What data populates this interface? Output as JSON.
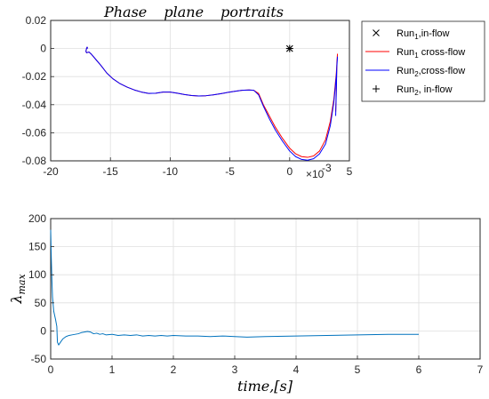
{
  "chart_data": [
    {
      "type": "line",
      "title": "Phase plane portraits",
      "xlim": [
        -20,
        5
      ],
      "ylim": [
        -0.08,
        0.02
      ],
      "x_ticks": [
        "-20",
        "-15",
        "-10",
        "-5",
        "0",
        "5"
      ],
      "y_ticks": [
        "0.02",
        "0",
        "-0.02",
        "-0.04",
        "-0.06",
        "-0.08"
      ],
      "x_exponent": {
        "base": "×10",
        "power": "-3"
      },
      "grid": true,
      "legend_position": "outside-right",
      "legend": [
        {
          "marker": "x",
          "name": "Run",
          "sub": "1",
          "suffix": ",in-flow",
          "color": "#000000"
        },
        {
          "line": true,
          "name": "Run",
          "sub": "1",
          "suffix": " cross-flow",
          "color": "#ff0000"
        },
        {
          "line": true,
          "name": "Run",
          "sub": "2",
          "suffix": ",cross-flow",
          "color": "#0000ff"
        },
        {
          "marker": "+",
          "name": "Run",
          "sub": "2",
          "suffix": ", in-flow",
          "color": "#000000"
        }
      ],
      "series": [
        {
          "name": "Run1 cross-flow",
          "color": "#ff0000",
          "points": [
            [
              -16.9,
              0.0
            ],
            [
              -16.95,
              0.001
            ],
            [
              -17.0,
              0.0
            ],
            [
              -17.05,
              -0.002
            ],
            [
              -17.0,
              -0.003
            ],
            [
              -16.8,
              -0.0025
            ],
            [
              -16.6,
              -0.004
            ],
            [
              -16.2,
              -0.008
            ],
            [
              -15.8,
              -0.012
            ],
            [
              -15.3,
              -0.0175
            ],
            [
              -14.8,
              -0.0215
            ],
            [
              -14.2,
              -0.025
            ],
            [
              -13.6,
              -0.0275
            ],
            [
              -13.0,
              -0.0295
            ],
            [
              -12.4,
              -0.031
            ],
            [
              -11.8,
              -0.032
            ],
            [
              -11.2,
              -0.0318
            ],
            [
              -10.6,
              -0.031
            ],
            [
              -10.0,
              -0.031
            ],
            [
              -9.4,
              -0.0318
            ],
            [
              -8.8,
              -0.0328
            ],
            [
              -8.2,
              -0.0335
            ],
            [
              -7.6,
              -0.0338
            ],
            [
              -7.0,
              -0.0336
            ],
            [
              -6.4,
              -0.033
            ],
            [
              -5.8,
              -0.0322
            ],
            [
              -5.2,
              -0.0313
            ],
            [
              -4.6,
              -0.0305
            ],
            [
              -4.0,
              -0.0298
            ],
            [
              -3.4,
              -0.0295
            ],
            [
              -3.0,
              -0.0298
            ],
            [
              -2.6,
              -0.032
            ],
            [
              -2.2,
              -0.04
            ],
            [
              -1.7,
              -0.048
            ],
            [
              -1.2,
              -0.056
            ],
            [
              -0.6,
              -0.064
            ],
            [
              0.0,
              -0.071
            ],
            [
              0.5,
              -0.075
            ],
            [
              1.0,
              -0.077
            ],
            [
              1.5,
              -0.0775
            ],
            [
              2.0,
              -0.0765
            ],
            [
              2.5,
              -0.073
            ],
            [
              3.0,
              -0.065
            ],
            [
              3.4,
              -0.052
            ],
            [
              3.7,
              -0.036
            ],
            [
              3.9,
              -0.018
            ],
            [
              4.0,
              -0.004
            ],
            [
              3.95,
              -0.01
            ],
            [
              3.9,
              -0.03
            ],
            [
              3.85,
              -0.045
            ]
          ]
        },
        {
          "name": "Run2 cross-flow",
          "color": "#0000ff",
          "points": [
            [
              -16.9,
              0.0
            ],
            [
              -16.95,
              0.001
            ],
            [
              -17.0,
              0.0
            ],
            [
              -17.05,
              -0.002
            ],
            [
              -17.0,
              -0.003
            ],
            [
              -16.8,
              -0.0025
            ],
            [
              -16.6,
              -0.004
            ],
            [
              -16.2,
              -0.008
            ],
            [
              -15.8,
              -0.012
            ],
            [
              -15.3,
              -0.0175
            ],
            [
              -14.8,
              -0.0215
            ],
            [
              -14.2,
              -0.025
            ],
            [
              -13.6,
              -0.0275
            ],
            [
              -13.0,
              -0.0295
            ],
            [
              -12.4,
              -0.031
            ],
            [
              -11.8,
              -0.032
            ],
            [
              -11.2,
              -0.0318
            ],
            [
              -10.6,
              -0.031
            ],
            [
              -10.0,
              -0.031
            ],
            [
              -9.4,
              -0.0318
            ],
            [
              -8.8,
              -0.0328
            ],
            [
              -8.2,
              -0.0335
            ],
            [
              -7.6,
              -0.0338
            ],
            [
              -7.0,
              -0.0336
            ],
            [
              -6.4,
              -0.033
            ],
            [
              -5.8,
              -0.0322
            ],
            [
              -5.2,
              -0.0313
            ],
            [
              -4.6,
              -0.0305
            ],
            [
              -4.0,
              -0.0298
            ],
            [
              -3.4,
              -0.0295
            ],
            [
              -3.0,
              -0.0298
            ],
            [
              -2.6,
              -0.033
            ],
            [
              -2.2,
              -0.041
            ],
            [
              -1.7,
              -0.05
            ],
            [
              -1.2,
              -0.058
            ],
            [
              -0.6,
              -0.066
            ],
            [
              0.0,
              -0.073
            ],
            [
              0.5,
              -0.077
            ],
            [
              1.0,
              -0.079
            ],
            [
              1.5,
              -0.0795
            ],
            [
              2.0,
              -0.0785
            ],
            [
              2.5,
              -0.075
            ],
            [
              3.0,
              -0.068
            ],
            [
              3.4,
              -0.055
            ],
            [
              3.7,
              -0.038
            ],
            [
              3.9,
              -0.02
            ],
            [
              4.0,
              -0.006
            ],
            [
              3.95,
              -0.012
            ],
            [
              3.9,
              -0.032
            ],
            [
              3.85,
              -0.048
            ]
          ]
        }
      ],
      "markers": [
        {
          "symbol": "x",
          "x": 0.0,
          "y": 0.0,
          "color": "#000000"
        },
        {
          "symbol": "+",
          "x": 0.0,
          "y": 0.0,
          "color": "#000000"
        }
      ]
    },
    {
      "type": "line",
      "xlabel": "time,[s]",
      "ylabel": "λ",
      "ylabel_sub": "max",
      "xlim": [
        0,
        7
      ],
      "ylim": [
        -50,
        200
      ],
      "x_ticks": [
        "0",
        "1",
        "2",
        "3",
        "4",
        "5",
        "6",
        "7"
      ],
      "y_ticks": [
        "200",
        "150",
        "100",
        "50",
        "0",
        "-50"
      ],
      "grid": true,
      "series": [
        {
          "name": "lambda_max",
          "color": "#0072bd",
          "points": [
            [
              0.0,
              180
            ],
            [
              0.01,
              130
            ],
            [
              0.02,
              90
            ],
            [
              0.03,
              60
            ],
            [
              0.05,
              35
            ],
            [
              0.08,
              20
            ],
            [
              0.1,
              8
            ],
            [
              0.11,
              -20
            ],
            [
              0.13,
              -25
            ],
            [
              0.16,
              -20
            ],
            [
              0.2,
              -14
            ],
            [
              0.25,
              -10
            ],
            [
              0.3,
              -8
            ],
            [
              0.35,
              -7
            ],
            [
              0.4,
              -6
            ],
            [
              0.45,
              -5
            ],
            [
              0.5,
              -3
            ],
            [
              0.55,
              -2
            ],
            [
              0.6,
              -1
            ],
            [
              0.65,
              -2
            ],
            [
              0.7,
              -5
            ],
            [
              0.75,
              -4
            ],
            [
              0.8,
              -6
            ],
            [
              0.85,
              -5
            ],
            [
              0.9,
              -7
            ],
            [
              1.0,
              -6
            ],
            [
              1.1,
              -8
            ],
            [
              1.2,
              -7
            ],
            [
              1.3,
              -8
            ],
            [
              1.4,
              -7
            ],
            [
              1.5,
              -9
            ],
            [
              1.6,
              -8
            ],
            [
              1.7,
              -9
            ],
            [
              1.8,
              -8
            ],
            [
              1.9,
              -9
            ],
            [
              2.0,
              -8
            ],
            [
              2.2,
              -9
            ],
            [
              2.4,
              -9
            ],
            [
              2.6,
              -10
            ],
            [
              2.8,
              -9
            ],
            [
              3.0,
              -10
            ],
            [
              3.2,
              -11
            ],
            [
              3.5,
              -10
            ],
            [
              4.0,
              -9
            ],
            [
              4.5,
              -8
            ],
            [
              5.0,
              -7
            ],
            [
              5.5,
              -6
            ],
            [
              6.0,
              -6
            ]
          ]
        }
      ]
    }
  ]
}
